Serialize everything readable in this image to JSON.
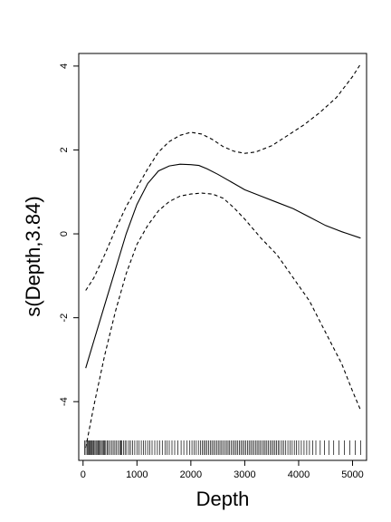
{
  "chart_data": {
    "type": "line",
    "xlabel": "Depth",
    "ylabel": "s(Depth,3.84)",
    "xlim": [
      -80,
      5260
    ],
    "ylim": [
      -5.4,
      4.3
    ],
    "x_ticks": [
      0,
      1000,
      2000,
      3000,
      4000,
      5000
    ],
    "y_ticks": [
      -4,
      -2,
      0,
      2,
      4
    ],
    "grid": false,
    "legend": "none",
    "series": [
      {
        "style": "solid",
        "x": [
          50,
          200,
          400,
          600,
          800,
          1000,
          1200,
          1400,
          1600,
          1800,
          2000,
          2150,
          2300,
          2500,
          2800,
          3000,
          3300,
          3600,
          3900,
          4200,
          4500,
          4800,
          5150
        ],
        "y": [
          -3.2,
          -2.55,
          -1.7,
          -0.85,
          0.0,
          0.7,
          1.2,
          1.5,
          1.62,
          1.66,
          1.65,
          1.63,
          1.55,
          1.42,
          1.2,
          1.05,
          0.9,
          0.75,
          0.6,
          0.4,
          0.2,
          0.05,
          -0.1
        ]
      },
      {
        "style": "dashed",
        "x": [
          50,
          200,
          400,
          600,
          800,
          1000,
          1200,
          1400,
          1600,
          1800,
          2000,
          2200,
          2400,
          2600,
          2800,
          3000,
          3200,
          3500,
          3800,
          4100,
          4400,
          4700,
          5000,
          5150
        ],
        "y": [
          -1.35,
          -1.05,
          -0.5,
          0.1,
          0.65,
          1.1,
          1.55,
          1.95,
          2.2,
          2.35,
          2.42,
          2.38,
          2.25,
          2.08,
          1.97,
          1.92,
          1.95,
          2.1,
          2.35,
          2.6,
          2.9,
          3.25,
          3.75,
          4.05
        ]
      },
      {
        "style": "dashed",
        "x": [
          50,
          200,
          400,
          600,
          800,
          1000,
          1200,
          1400,
          1600,
          1800,
          2000,
          2200,
          2400,
          2600,
          2800,
          3000,
          3300,
          3600,
          3900,
          4200,
          4500,
          4800,
          5000,
          5150
        ],
        "y": [
          -5.1,
          -4.1,
          -2.9,
          -1.85,
          -0.95,
          -0.25,
          0.2,
          0.55,
          0.77,
          0.9,
          0.95,
          0.97,
          0.95,
          0.85,
          0.62,
          0.35,
          -0.1,
          -0.5,
          -1.05,
          -1.6,
          -2.35,
          -3.1,
          -3.75,
          -4.2
        ]
      }
    ],
    "rug": [
      30,
      55,
      80,
      100,
      115,
      130,
      150,
      165,
      185,
      200,
      220,
      240,
      260,
      280,
      300,
      320,
      340,
      360,
      380,
      400,
      420,
      445,
      470,
      500,
      530,
      560,
      590,
      620,
      650,
      680,
      700,
      720,
      750,
      780,
      810,
      850,
      880,
      920,
      960,
      1000,
      1040,
      1080,
      1120,
      1160,
      1200,
      1240,
      1280,
      1330,
      1380,
      1420,
      1470,
      1520,
      1560,
      1600,
      1650,
      1700,
      1760,
      1820,
      1870,
      1930,
      1980,
      2020,
      2060,
      2100,
      2140,
      2180,
      2210,
      2240,
      2270,
      2300,
      2330,
      2360,
      2390,
      2420,
      2450,
      2480,
      2510,
      2540,
      2570,
      2600,
      2630,
      2660,
      2690,
      2720,
      2750,
      2780,
      2810,
      2840,
      2870,
      2900,
      2930,
      2960,
      2990,
      3020,
      3050,
      3080,
      3110,
      3140,
      3170,
      3200,
      3230,
      3260,
      3290,
      3320,
      3350,
      3380,
      3410,
      3440,
      3470,
      3500,
      3530,
      3560,
      3590,
      3620,
      3650,
      3690,
      3720,
      3760,
      3800,
      3840,
      3880,
      3920,
      3960,
      4000,
      4050,
      4100,
      4150,
      4200,
      4260,
      4320,
      4400,
      4480,
      4560,
      4650,
      4750,
      4850,
      4950,
      5050,
      5150
    ]
  }
}
